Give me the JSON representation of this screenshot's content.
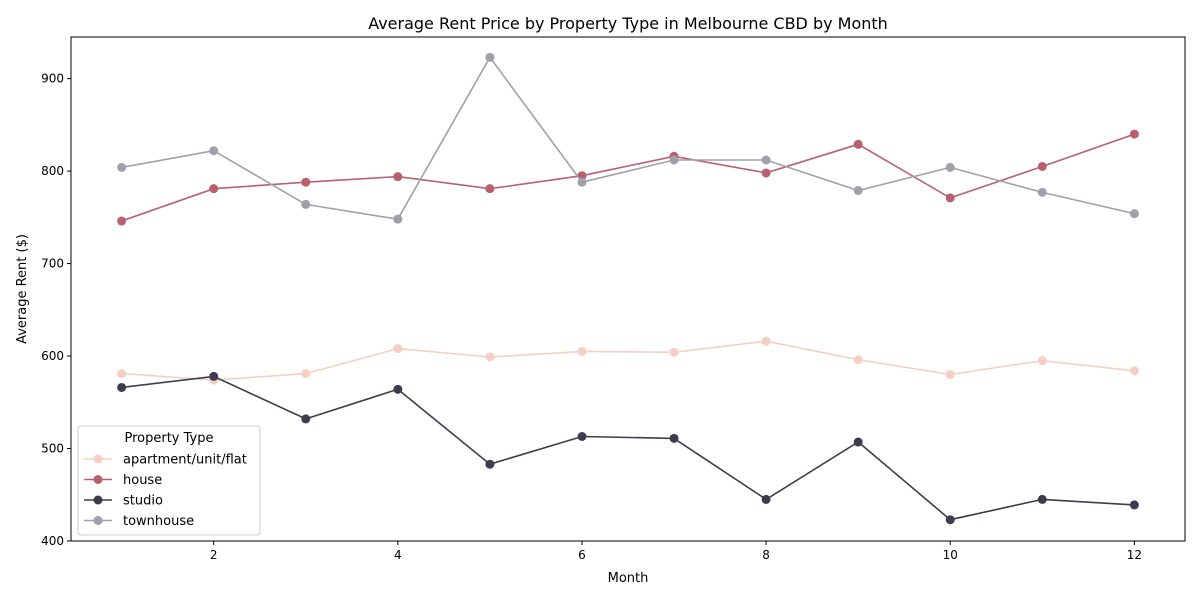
{
  "chart_data": {
    "type": "line",
    "title": "Average Rent Price by Property Type in Melbourne CBD by Month",
    "xlabel": "Month",
    "ylabel": "Average Rent ($)",
    "xlim": [
      0.45,
      12.55
    ],
    "ylim": [
      400,
      945
    ],
    "xticks": [
      2,
      4,
      6,
      8,
      10,
      12
    ],
    "yticks": [
      400,
      500,
      600,
      700,
      800,
      900
    ],
    "grid": false,
    "legend": {
      "title": "Property Type",
      "placement": "lower-left"
    },
    "x": [
      1,
      2,
      3,
      4,
      5,
      6,
      7,
      8,
      9,
      10,
      11,
      12
    ],
    "series": [
      {
        "name": "apartment/unit/flat",
        "color": "#f5cfc3",
        "values": [
          581,
          574,
          581,
          608,
          599,
          605,
          604,
          616,
          596,
          580,
          595,
          584
        ]
      },
      {
        "name": "house",
        "color": "#b8606f",
        "values": [
          746,
          781,
          788,
          794,
          781,
          795,
          816,
          798,
          829,
          771,
          805,
          840
        ]
      },
      {
        "name": "studio",
        "color": "#403a4e",
        "values": [
          566,
          578,
          532,
          564,
          483,
          513,
          511,
          445,
          507,
          423,
          445,
          439
        ]
      },
      {
        "name": "townhouse",
        "color": "#a29fad",
        "values": [
          804,
          822,
          764,
          748,
          923,
          788,
          812,
          812,
          779,
          804,
          777,
          754
        ]
      }
    ]
  }
}
